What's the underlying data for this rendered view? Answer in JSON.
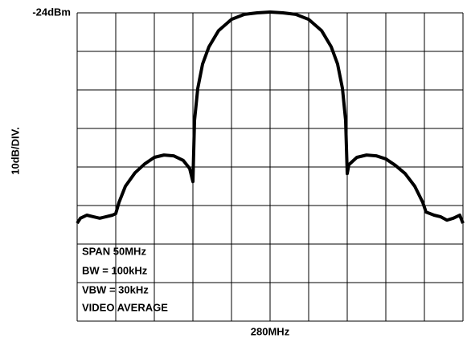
{
  "chart_data": {
    "type": "line",
    "ylabel": "10dB/DIV.",
    "annotations": [
      "SPAN 50MHz",
      "BW = 100kHz",
      "VBW = 30kHz",
      "VIDEO AVERAGE"
    ],
    "xlim": [
      255,
      305
    ],
    "xticks": [
      {
        "value": 255,
        "label": null
      },
      {
        "value": 260,
        "label": null
      },
      {
        "value": 265,
        "label": null
      },
      {
        "value": 270,
        "label": null
      },
      {
        "value": 275,
        "label": null
      },
      {
        "value": 280,
        "label": "280MHz"
      },
      {
        "value": 285,
        "label": null
      },
      {
        "value": 290,
        "label": null
      },
      {
        "value": 295,
        "label": null
      },
      {
        "value": 300,
        "label": null
      },
      {
        "value": 305,
        "label": null
      }
    ],
    "ylim": [
      -104,
      -24
    ],
    "yticks": [
      {
        "value": -24,
        "label": "-24dBm"
      },
      {
        "value": -34,
        "label": null
      },
      {
        "value": -44,
        "label": null
      },
      {
        "value": -54,
        "label": null
      },
      {
        "value": -64,
        "label": null
      },
      {
        "value": -74,
        "label": null
      },
      {
        "value": -84,
        "label": null
      },
      {
        "value": -94,
        "label": null
      },
      {
        "value": -104,
        "label": null
      }
    ],
    "grid": true,
    "series": [
      {
        "color": "#000000",
        "x": [
          255,
          255.42,
          256.25,
          257.08,
          257.92,
          258.75,
          259.58,
          260,
          260.42,
          261.25,
          262.5,
          263.75,
          265,
          266.25,
          267.5,
          268.75,
          269.58,
          270,
          270.21,
          270.63,
          271.25,
          272.08,
          273.33,
          275,
          276.67,
          278.33,
          280,
          281.67,
          283.33,
          285,
          286.67,
          287.92,
          288.75,
          289.38,
          289.79,
          290,
          290.21,
          291.25,
          292.5,
          293.75,
          295,
          296.25,
          297.5,
          298.75,
          299.79,
          300.21,
          301.25,
          302.08,
          302.92,
          303.75,
          304.58,
          305
        ],
        "values": [
          -78.6,
          -77.3,
          -76.5,
          -76.9,
          -77.3,
          -76.9,
          -76.5,
          -76.1,
          -73.2,
          -69.0,
          -65.5,
          -63.2,
          -61.5,
          -60.9,
          -61.1,
          -62.3,
          -64.4,
          -67.8,
          -51.9,
          -43.6,
          -37.3,
          -32.8,
          -28.6,
          -25.7,
          -24.4,
          -24.0,
          -23.8,
          -24.0,
          -24.4,
          -25.7,
          -28.6,
          -32.8,
          -37.3,
          -43.6,
          -51.9,
          -65.7,
          -63.4,
          -61.5,
          -60.9,
          -61.1,
          -61.9,
          -63.6,
          -65.7,
          -69.0,
          -73.2,
          -75.7,
          -76.5,
          -76.9,
          -77.8,
          -77.3,
          -76.5,
          -78.6
        ]
      }
    ]
  }
}
